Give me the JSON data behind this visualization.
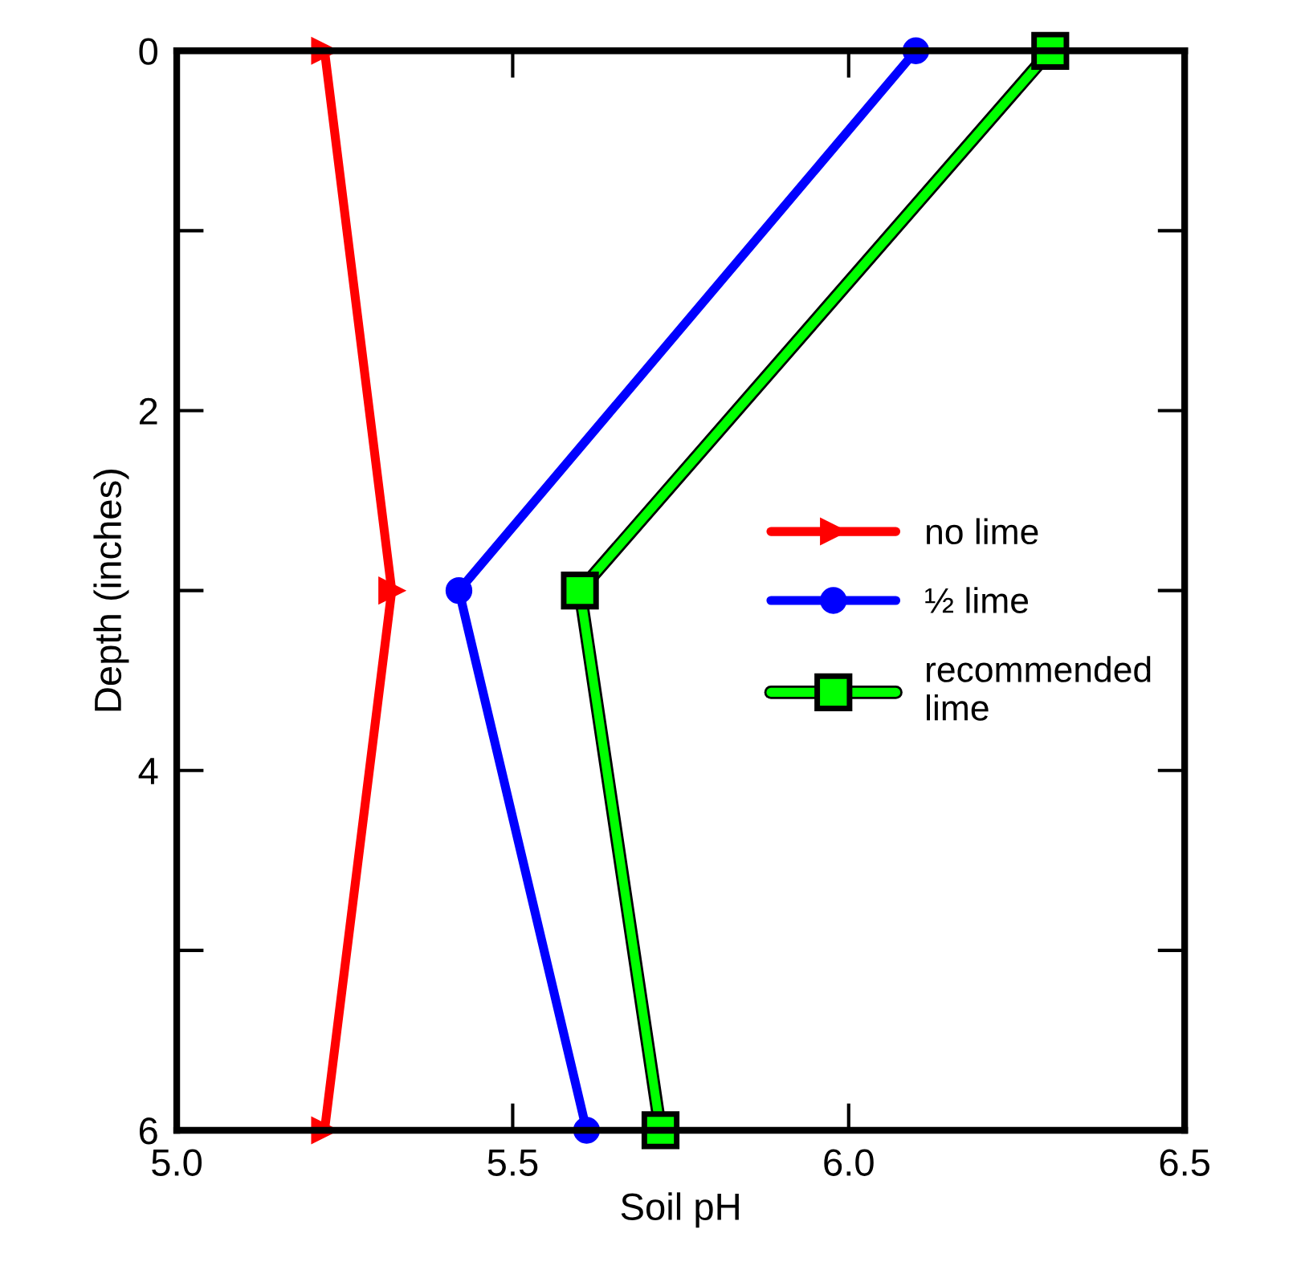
{
  "chart_data": {
    "type": "line",
    "xlabel": "Soil pH",
    "ylabel": "Depth (inches)",
    "xlim": [
      5.0,
      6.5
    ],
    "xticks": [
      {
        "value": 5.0,
        "label": "5.0"
      },
      {
        "value": 5.5,
        "label": "5.5"
      },
      {
        "value": 6.0,
        "label": "6.0"
      },
      {
        "value": 6.5,
        "label": "6.5"
      }
    ],
    "ylim": [
      6,
      0
    ],
    "yticks": [
      0,
      2,
      4,
      6
    ],
    "grid": false,
    "legend": "right",
    "line_style": "solid",
    "series": [
      {
        "name": "no lime",
        "color": "#ff0000",
        "marker": "triangle",
        "x": [
          5.22,
          5.32,
          5.22
        ],
        "values": [
          0,
          3,
          6
        ]
      },
      {
        "name": "½ lime",
        "color": "#0000ff",
        "marker": "circle",
        "x": [
          6.1,
          5.42,
          5.61
        ],
        "values": [
          0,
          3,
          6
        ]
      },
      {
        "name": "recommended\nlime",
        "color": "#00ff00",
        "marker": "square",
        "x": [
          6.3,
          5.6,
          5.72
        ],
        "values": [
          0,
          3,
          6
        ]
      }
    ]
  }
}
